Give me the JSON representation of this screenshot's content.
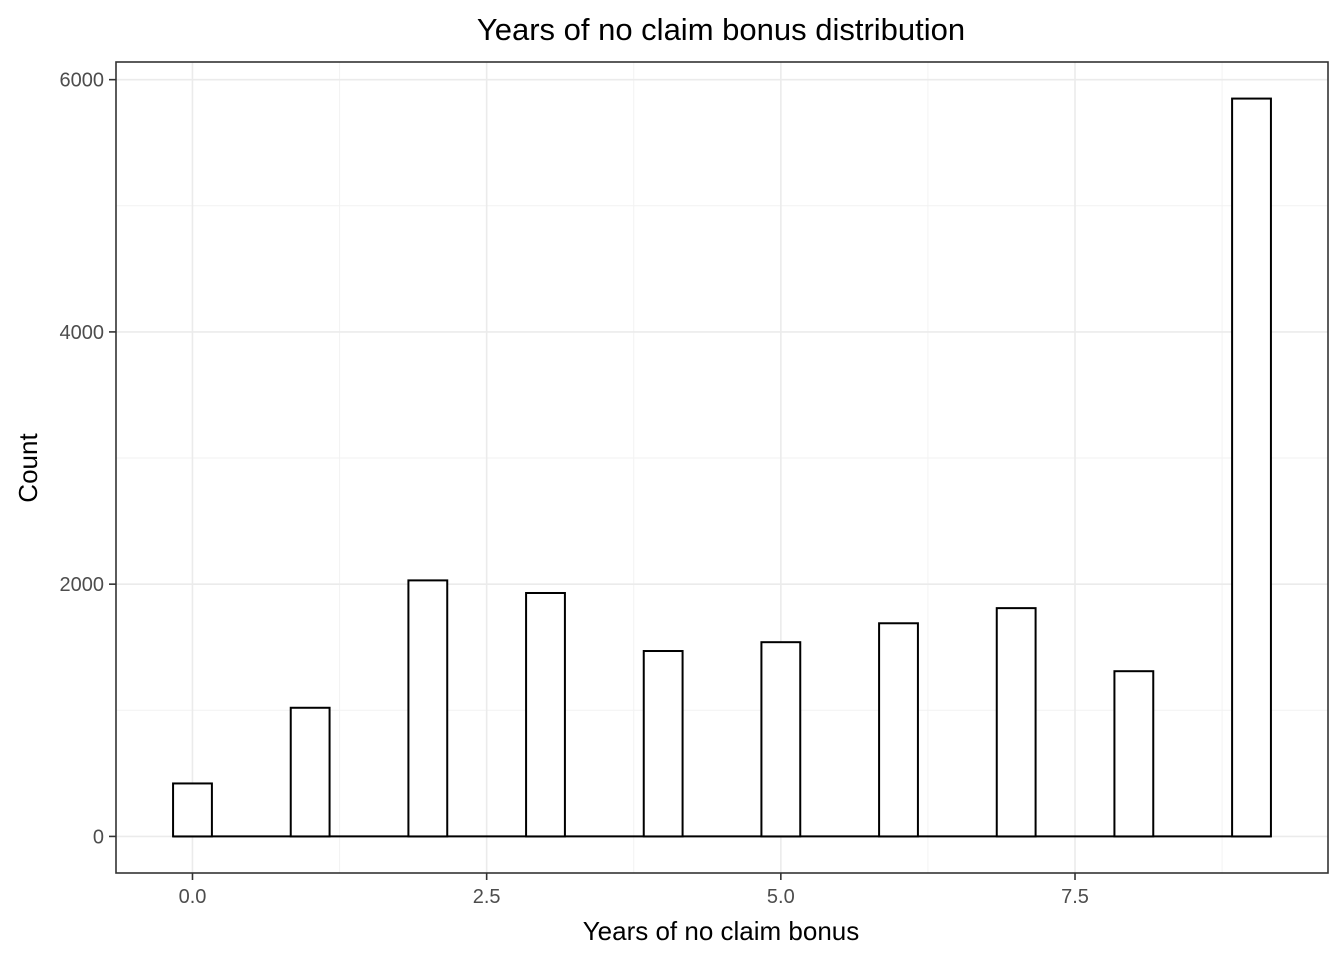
{
  "chart_data": {
    "type": "bar",
    "title": "Years of no claim bonus distribution",
    "xlabel": "Years of no claim bonus",
    "ylabel": "Count",
    "x": [
      0,
      1,
      2,
      3,
      4,
      5,
      6,
      7,
      8,
      9
    ],
    "values": [
      420,
      1020,
      2030,
      1930,
      1470,
      1540,
      1690,
      1810,
      1310,
      5850
    ],
    "xlim": [
      -0.65,
      9.65
    ],
    "ylim": [
      -290,
      6140
    ],
    "x_ticks": [
      0,
      2.5,
      5,
      7.5
    ],
    "x_tick_labels": [
      "0.0",
      "2.5",
      "5.0",
      "7.5"
    ],
    "y_ticks": [
      0,
      2000,
      4000,
      6000
    ],
    "y_tick_labels": [
      "0",
      "2000",
      "4000",
      "6000"
    ],
    "grid": true,
    "bin_width": 0.33,
    "colors": {
      "fill": "#ffffff",
      "outline": "#000000",
      "grid": "#ebebeb"
    }
  }
}
